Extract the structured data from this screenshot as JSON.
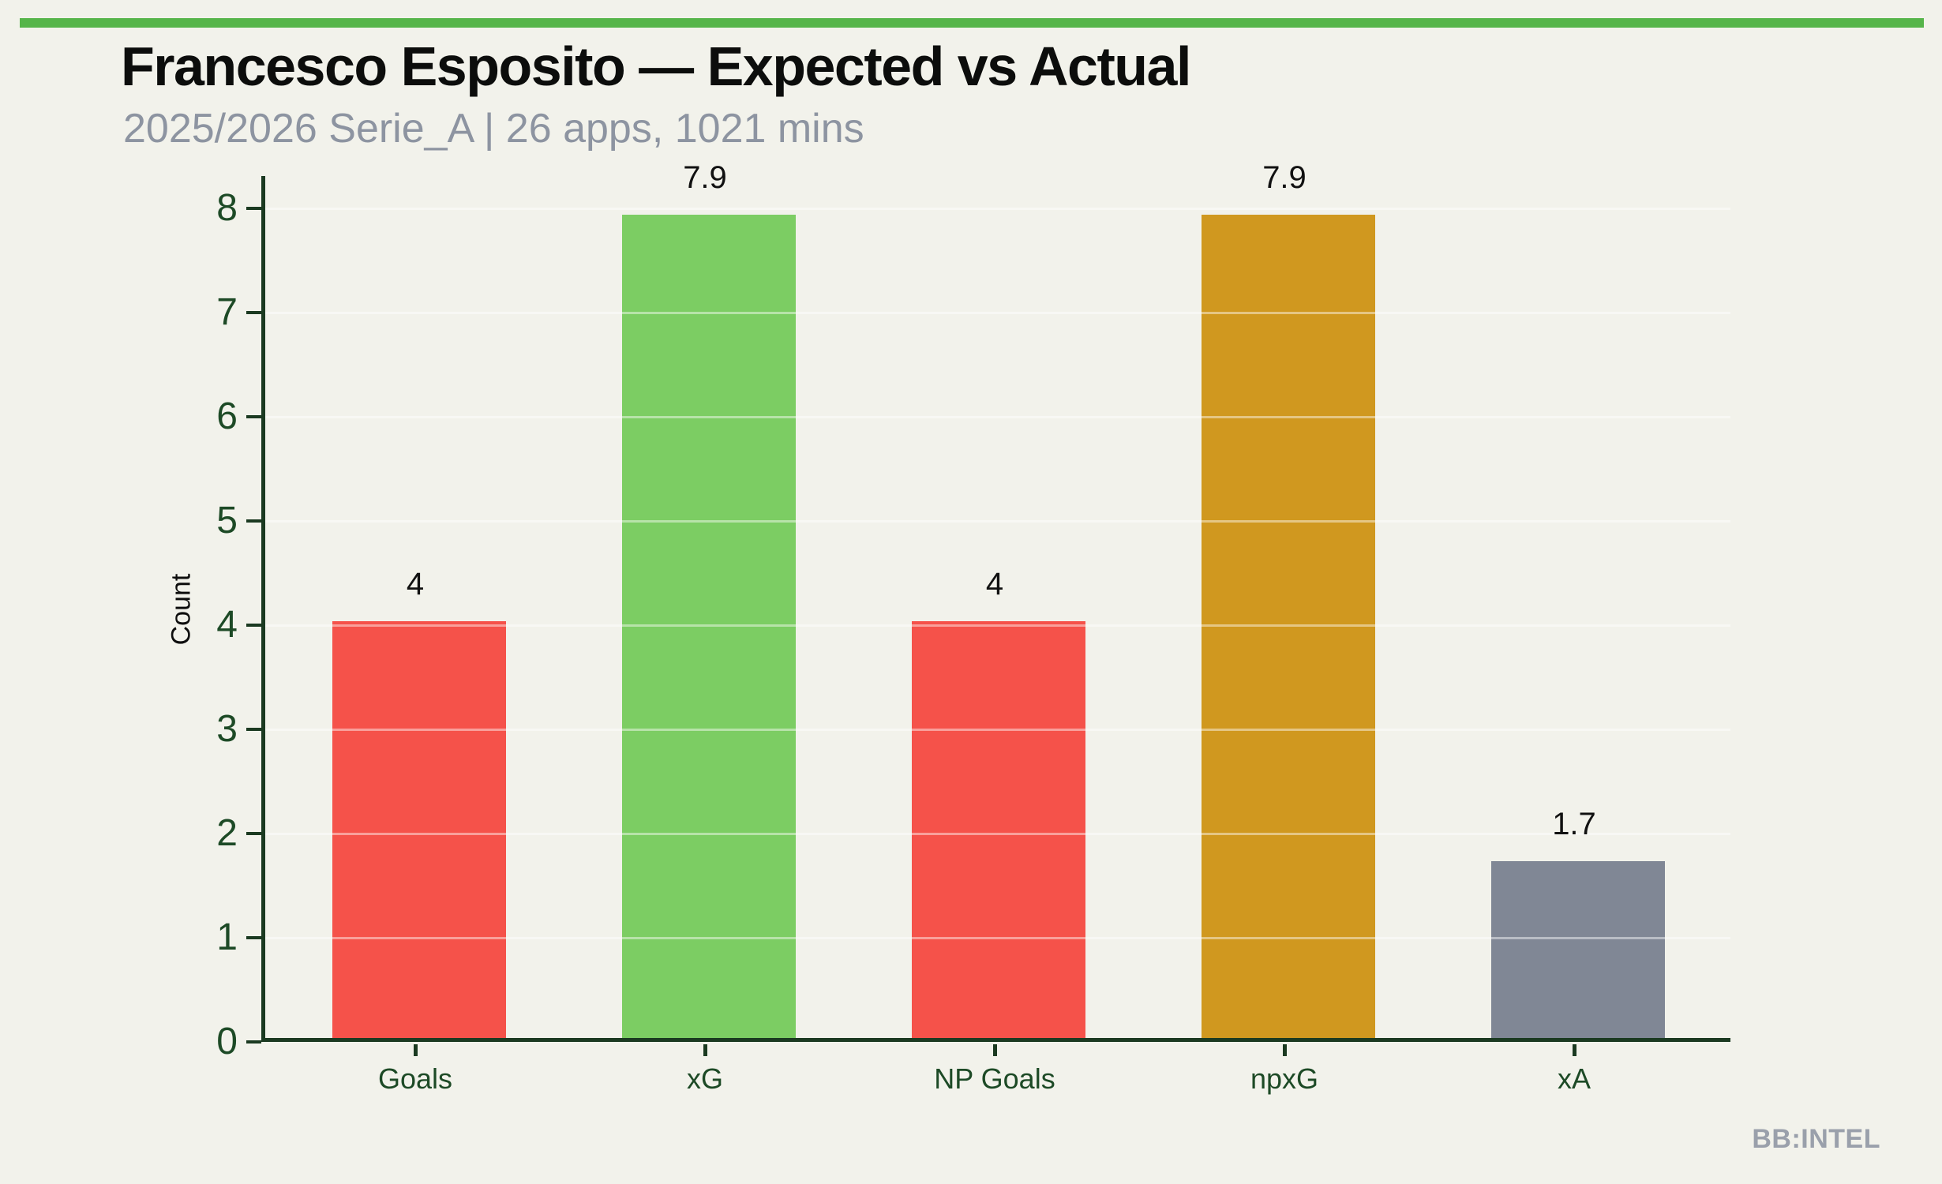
{
  "chart_data": {
    "type": "bar",
    "title": "Francesco Esposito — Expected vs Actual",
    "subtitle": "2025/2026 Serie_A | 26 apps, 1021 mins",
    "categories": [
      "Goals",
      "xG",
      "NP Goals",
      "npxG",
      "xA"
    ],
    "values": [
      4,
      7.9,
      4,
      7.9,
      1.7
    ],
    "value_labels": [
      "4",
      "7.9",
      "4",
      "7.9",
      "1.7"
    ],
    "bar_colors": [
      "#f5524a",
      "#7ccd63",
      "#f5524a",
      "#d0981f",
      "#808795"
    ],
    "xlabel": "",
    "ylabel": "Count",
    "ylim": [
      0,
      8.3
    ],
    "yticks": [
      0,
      1,
      2,
      3,
      4,
      5,
      6,
      7,
      8
    ],
    "grid": true,
    "legend": "none",
    "watermark": "BB:INTEL",
    "colors": {
      "background": "#f2f2eb",
      "accent_bar": "#56b54a",
      "axis": "#1b3a21",
      "tick_labels": "#1d4a26",
      "title": "#0c0d0c",
      "subtitle": "#8d94a1",
      "value_labels": "#111111",
      "gridline": "rgba(255,255,255,0.45)",
      "watermark": "#9aa0ab"
    }
  }
}
